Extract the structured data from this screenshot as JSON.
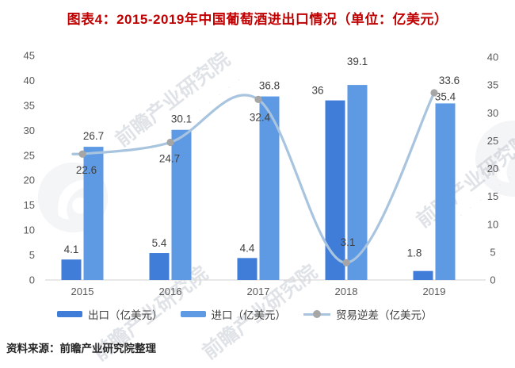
{
  "title": "图表4：2015-2019年中国葡萄酒进出口情况（单位：亿美元）",
  "source_note": "资料来源：前瞻产业研究院整理",
  "watermark": {
    "brand_text": "前瞻产业研究院",
    "dots": "· · · · · · · · · ·"
  },
  "colors": {
    "title": "#c00000",
    "axis_text": "#595959",
    "data_label": "#404040",
    "baseline": "#d9d9d9",
    "export_bar": "#3f7dd8",
    "import_bar": "#5e9ae4",
    "deficit_line": "#a8c4de",
    "marker": "#a6a6a6"
  },
  "chart_data": {
    "type": "bar",
    "subtype": "grouped-bars-with-smooth-line",
    "title": "图表4：2015-2019年中国葡萄酒进出口情况（单位：亿美元）",
    "categories": [
      "2015",
      "2016",
      "2017",
      "2018",
      "2019"
    ],
    "series": [
      {
        "name": "出口（亿美元）",
        "type": "bar",
        "axis": "left",
        "color": "#3f7dd8",
        "values": [
          4.1,
          5.4,
          4.4,
          36,
          1.8
        ],
        "labels": [
          "4.1",
          "5.4",
          "4.4",
          "36",
          "1.8"
        ]
      },
      {
        "name": "进口（亿美元）",
        "type": "bar",
        "axis": "left",
        "color": "#5e9ae4",
        "values": [
          26.7,
          30.1,
          36.8,
          39.1,
          35.4
        ],
        "labels": [
          "26.7",
          "30.1",
          "36.8",
          "39.1",
          "35.4"
        ]
      },
      {
        "name": "贸易逆差（亿美元）",
        "type": "line",
        "axis": "right",
        "color": "#a8c4de",
        "marker_color": "#a6a6a6",
        "values": [
          22.6,
          24.7,
          32.4,
          3.1,
          33.6
        ],
        "labels": [
          "22.6",
          "24.7",
          "32.4",
          "3.1",
          "33.6"
        ]
      }
    ],
    "left_axis": {
      "min": 0,
      "max": 45,
      "step": 5,
      "ticks": [
        "0",
        "5",
        "10",
        "15",
        "20",
        "25",
        "30",
        "35",
        "40",
        "45"
      ]
    },
    "right_axis": {
      "min": 0,
      "max": 40,
      "step": 5,
      "ticks": [
        "0",
        "5",
        "10",
        "15",
        "20",
        "25",
        "30",
        "35",
        "40"
      ]
    },
    "grid": false,
    "legend_position": "bottom",
    "xlabel": "",
    "ylabel_left": "",
    "ylabel_right": ""
  }
}
